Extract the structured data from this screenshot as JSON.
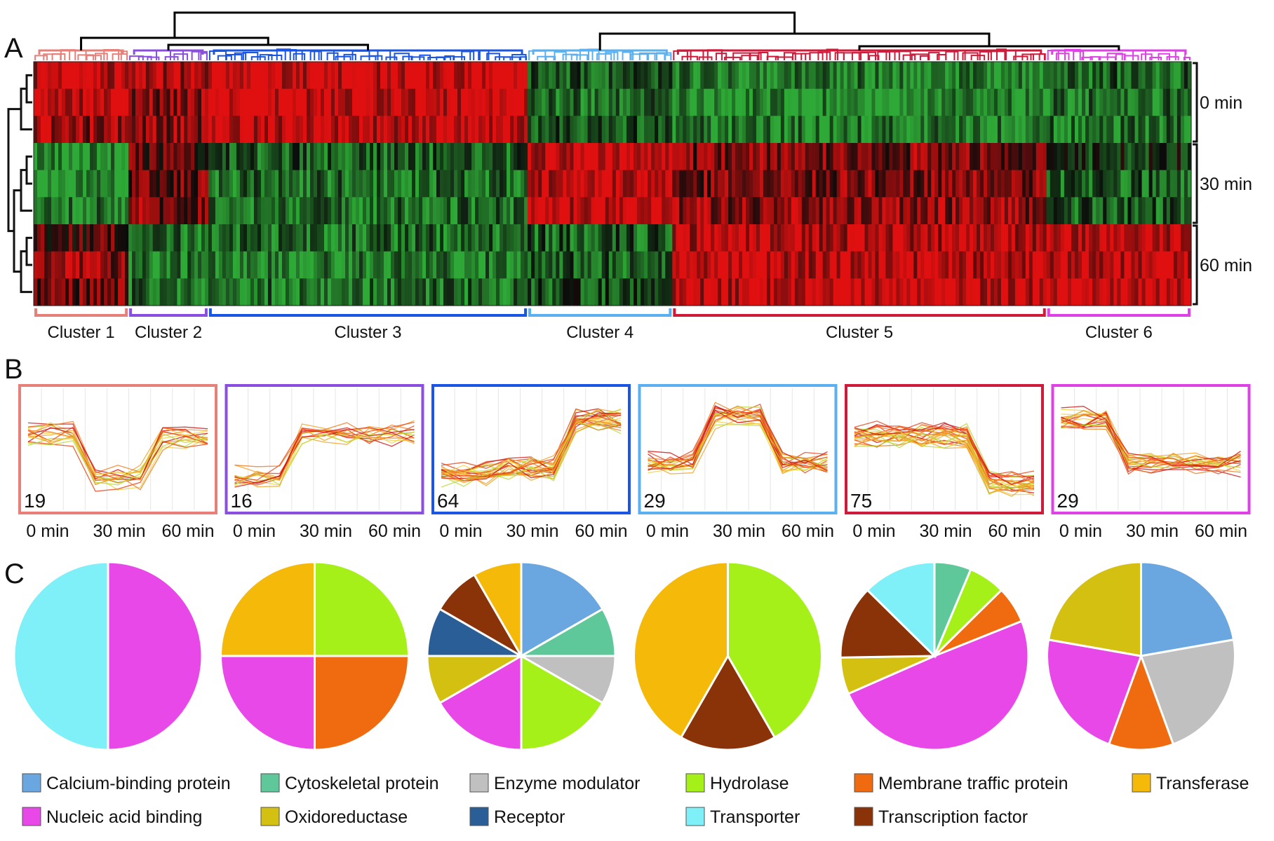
{
  "panel_labels": [
    "A",
    "B",
    "C"
  ],
  "time_labels": [
    "0 min",
    "30 min",
    "60 min"
  ],
  "colors": {
    "heat_low": "#2ea836",
    "heat_mid": "#0a0a0a",
    "heat_high": "#e01010",
    "dendro_root": "#000000"
  },
  "chart_data": [
    {
      "type": "heatmap",
      "panel": "A",
      "rows": [
        "0 min",
        "0 min",
        "0 min",
        "30 min",
        "30 min",
        "30 min",
        "60 min",
        "60 min",
        "60 min"
      ],
      "row_group_labels": [
        "0 min",
        "30 min",
        "60 min"
      ],
      "clusters": [
        {
          "name": "Cluster 1",
          "count": 19,
          "color": "#e8807a",
          "row_values": [
            0.9,
            0.9,
            0.6,
            -0.8,
            -0.9,
            -0.7,
            0.3,
            0.6,
            0.4
          ]
        },
        {
          "name": "Cluster 2",
          "count": 16,
          "color": "#8a4fe0",
          "row_values": [
            0.7,
            0.6,
            0.6,
            0.3,
            0.4,
            0.5,
            -0.6,
            -0.7,
            -0.6
          ]
        },
        {
          "name": "Cluster 3",
          "count": 64,
          "color": "#1a55e6",
          "row_values": [
            0.95,
            0.95,
            0.9,
            -0.5,
            -0.6,
            -0.6,
            -0.6,
            -0.7,
            -0.6
          ]
        },
        {
          "name": "Cluster 4",
          "count": 29,
          "color": "#5ab0f0",
          "row_values": [
            -0.5,
            -0.6,
            -0.4,
            0.9,
            0.9,
            0.85,
            -0.5,
            -0.5,
            -0.4
          ]
        },
        {
          "name": "Cluster 5",
          "count": 75,
          "color": "#d01a3a",
          "row_values": [
            -0.7,
            -0.8,
            -0.7,
            0.5,
            0.5,
            0.6,
            0.8,
            0.85,
            0.9
          ]
        },
        {
          "name": "Cluster 6",
          "count": 29,
          "color": "#e040e8",
          "row_values": [
            -0.5,
            -0.6,
            -0.6,
            -0.3,
            -0.5,
            -0.5,
            0.9,
            0.9,
            0.9
          ]
        }
      ]
    },
    {
      "type": "line",
      "panel": "B",
      "x": [
        "0 min",
        "30 min",
        "60 min"
      ],
      "ylim": [
        -1,
        1
      ],
      "series": [
        {
          "name": "Cluster 1",
          "label": "19",
          "values": [
            0.3,
            -0.6,
            0.2
          ]
        },
        {
          "name": "Cluster 2",
          "label": "16",
          "values": [
            -0.6,
            0.3,
            0.3
          ]
        },
        {
          "name": "Cluster 3",
          "label": "64",
          "values": [
            -0.5,
            -0.4,
            0.6
          ]
        },
        {
          "name": "Cluster 4",
          "label": "29",
          "values": [
            -0.3,
            0.7,
            -0.3
          ]
        },
        {
          "name": "Cluster 5",
          "label": "75",
          "values": [
            0.3,
            0.3,
            -0.7
          ]
        },
        {
          "name": "Cluster 6",
          "label": "29",
          "values": [
            0.6,
            -0.3,
            -0.3
          ]
        }
      ]
    },
    {
      "type": "pie",
      "panel": "C",
      "categories": [
        "Calcium-binding protein",
        "Cytoskeletal protein",
        "Enzyme modulator",
        "Hydrolase",
        "Membrane traffic protein",
        "Transferase",
        "Nucleic acid binding",
        "Oxidoreductase",
        "Receptor",
        "Transporter",
        "Transcription factor"
      ],
      "category_colors": [
        "#6aa6e0",
        "#5ec89a",
        "#c0c0c0",
        "#a6f01a",
        "#f06a10",
        "#f5b90a",
        "#e848e8",
        "#d4c010",
        "#2a5e96",
        "#80f0f8",
        "#8a3208"
      ],
      "pies": [
        {
          "cluster": "Cluster 1",
          "slices": [
            {
              "category": "Nucleic acid binding",
              "value": 50
            },
            {
              "category": "Transporter",
              "value": 50
            }
          ]
        },
        {
          "cluster": "Cluster 2",
          "slices": [
            {
              "category": "Hydrolase",
              "value": 25
            },
            {
              "category": "Membrane traffic protein",
              "value": 25
            },
            {
              "category": "Nucleic acid binding",
              "value": 25
            },
            {
              "category": "Transferase",
              "value": 25
            }
          ]
        },
        {
          "cluster": "Cluster 3",
          "slices": [
            {
              "category": "Calcium-binding protein",
              "value": 15.4
            },
            {
              "category": "Cytoskeletal protein",
              "value": 7.7
            },
            {
              "category": "Enzyme modulator",
              "value": 7.7
            },
            {
              "category": "Hydrolase",
              "value": 15.4
            },
            {
              "category": "Nucleic acid binding",
              "value": 15.4
            },
            {
              "category": "Oxidoreductase",
              "value": 7.7
            },
            {
              "category": "Receptor",
              "value": 7.7
            },
            {
              "category": "Transcription factor",
              "value": 7.7
            },
            {
              "category": "Transferase",
              "value": 7.7
            }
          ]
        },
        {
          "cluster": "Cluster 4",
          "slices": [
            {
              "category": "Hydrolase",
              "value": 41.7
            },
            {
              "category": "Transcription factor",
              "value": 16.6
            },
            {
              "category": "Transferase",
              "value": 41.7
            }
          ]
        },
        {
          "cluster": "Cluster 5",
          "slices": [
            {
              "category": "Cytoskeletal protein",
              "value": 6
            },
            {
              "category": "Hydrolase",
              "value": 6
            },
            {
              "category": "Membrane traffic protein",
              "value": 6
            },
            {
              "category": "Nucleic acid binding",
              "value": 47
            },
            {
              "category": "Oxidoreductase",
              "value": 6
            },
            {
              "category": "Transcription factor",
              "value": 12
            },
            {
              "category": "Transporter",
              "value": 12
            }
          ]
        },
        {
          "cluster": "Cluster 6",
          "slices": [
            {
              "category": "Calcium-binding protein",
              "value": 22
            },
            {
              "category": "Enzyme modulator",
              "value": 22
            },
            {
              "category": "Membrane traffic protein",
              "value": 11
            },
            {
              "category": "Nucleic acid binding",
              "value": 22
            },
            {
              "category": "Oxidoreductase",
              "value": 22
            }
          ]
        }
      ],
      "legend": [
        [
          "Calcium-binding protein",
          "Cytoskeletal protein",
          "Enzyme modulator",
          "Hydrolase",
          "Membrane traffic protein",
          "Transferase"
        ],
        [
          "Nucleic acid binding",
          "Oxidoreductase",
          "Receptor",
          "Transporter",
          "Transcription factor"
        ]
      ]
    }
  ]
}
